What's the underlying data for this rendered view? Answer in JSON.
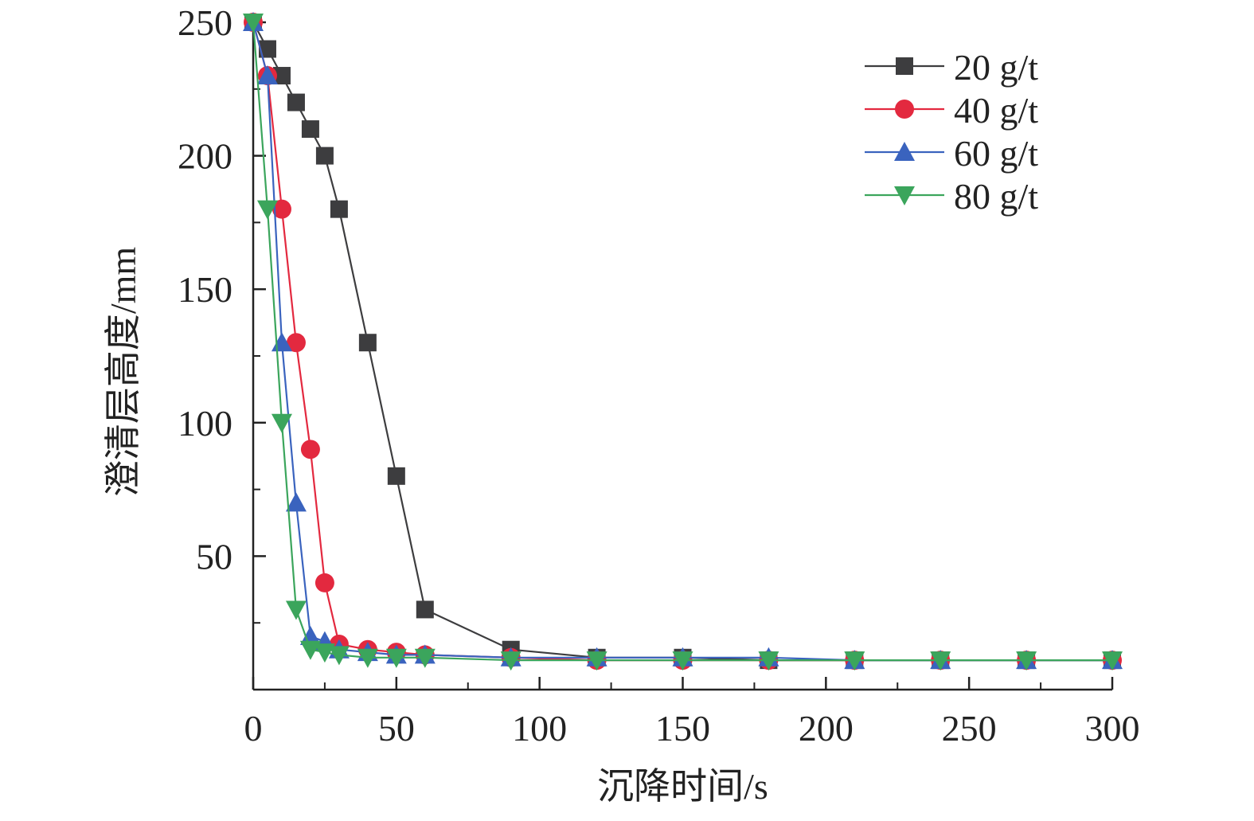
{
  "chart_data": {
    "type": "line",
    "xlabel": "沉降时间/s",
    "ylabel": "澄清层高度/mm",
    "xlim": [
      0,
      300
    ],
    "ylim": [
      0,
      250
    ],
    "x_ticks": [
      0,
      50,
      100,
      150,
      200,
      250,
      300
    ],
    "y_ticks": [
      50,
      100,
      150,
      200,
      250
    ],
    "x_tick_labels": [
      "0",
      "50",
      "100",
      "150",
      "200",
      "250",
      "300"
    ],
    "y_tick_labels": [
      "50",
      "100",
      "150",
      "200",
      "250"
    ],
    "grid": false,
    "legend_position": "top-right",
    "series": [
      {
        "name": "20 g/t",
        "color": "#3d3d3f",
        "marker": "square",
        "x": [
          0,
          5,
          10,
          15,
          20,
          25,
          30,
          40,
          50,
          60,
          90,
          120,
          150,
          180,
          210,
          240,
          270,
          300
        ],
        "y": [
          250,
          240,
          230,
          220,
          210,
          200,
          180,
          130,
          80,
          30,
          15,
          12,
          12,
          11,
          11,
          11,
          11,
          11
        ]
      },
      {
        "name": "40 g/t",
        "color": "#e3293f",
        "marker": "circle",
        "x": [
          0,
          5,
          10,
          15,
          20,
          25,
          30,
          40,
          50,
          60,
          90,
          120,
          150,
          180,
          210,
          240,
          270,
          300
        ],
        "y": [
          250,
          230,
          180,
          130,
          90,
          40,
          17,
          15,
          14,
          13,
          12,
          11,
          11,
          11,
          11,
          11,
          11,
          11
        ]
      },
      {
        "name": "60 g/t",
        "color": "#3a63be",
        "marker": "triangle-up",
        "x": [
          0,
          5,
          10,
          15,
          20,
          25,
          30,
          40,
          50,
          60,
          90,
          120,
          150,
          180,
          210,
          240,
          270,
          300
        ],
        "y": [
          250,
          230,
          130,
          70,
          20,
          18,
          15,
          14,
          13,
          13,
          12,
          12,
          12,
          12,
          11,
          11,
          11,
          11
        ]
      },
      {
        "name": "80 g/t",
        "color": "#3ba55c",
        "marker": "triangle-down",
        "x": [
          0,
          5,
          10,
          15,
          20,
          25,
          30,
          40,
          50,
          60,
          90,
          120,
          150,
          180,
          210,
          240,
          270,
          300
        ],
        "y": [
          250,
          180,
          100,
          30,
          15,
          14,
          13,
          12,
          12,
          12,
          11,
          11,
          11,
          11,
          11,
          11,
          11,
          11
        ]
      }
    ]
  }
}
